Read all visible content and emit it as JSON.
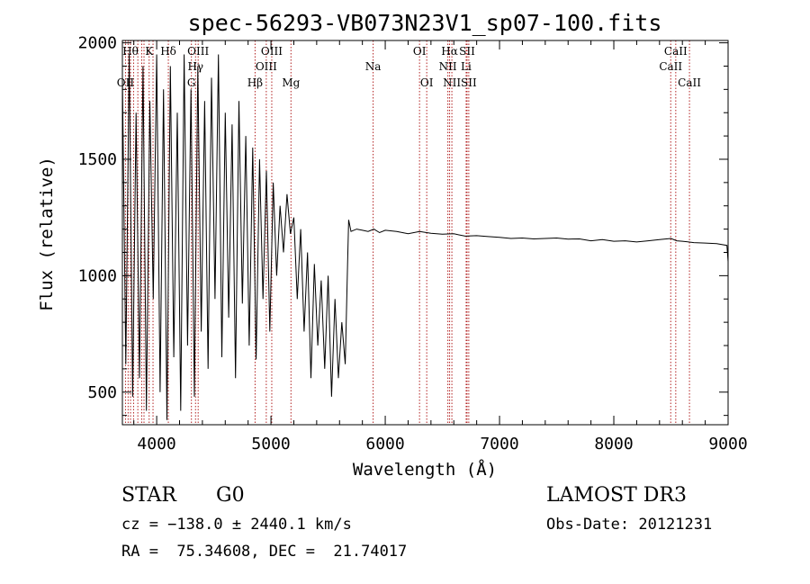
{
  "chart_data": {
    "type": "line",
    "title": "spec-56293-VB073N23V1_sp07-100.fits",
    "xlabel": "Wavelength (Å)",
    "ylabel": "Flux (relative)",
    "xlim": [
      3700,
      9000
    ],
    "ylim": [
      360,
      2010
    ],
    "xticks": [
      4000,
      5000,
      6000,
      7000,
      8000,
      9000
    ],
    "yticks": [
      500,
      1000,
      1500,
      2000
    ],
    "grid": false,
    "series": [
      {
        "name": "flux",
        "x": [
          3700,
          3730,
          3760,
          3790,
          3820,
          3850,
          3880,
          3910,
          3940,
          3970,
          4000,
          4030,
          4060,
          4090,
          4120,
          4150,
          4180,
          4210,
          4240,
          4270,
          4300,
          4330,
          4360,
          4390,
          4420,
          4450,
          4480,
          4510,
          4540,
          4570,
          4600,
          4630,
          4660,
          4690,
          4720,
          4750,
          4780,
          4810,
          4840,
          4870,
          4900,
          4930,
          4960,
          4990,
          5020,
          5050,
          5080,
          5110,
          5140,
          5170,
          5200,
          5230,
          5260,
          5290,
          5320,
          5350,
          5380,
          5410,
          5440,
          5470,
          5500,
          5530,
          5560,
          5590,
          5620,
          5650,
          5670,
          5680,
          5700,
          5750,
          5800,
          5850,
          5900,
          5950,
          6000,
          6100,
          6200,
          6300,
          6400,
          6500,
          6600,
          6700,
          6800,
          6900,
          7000,
          7100,
          7200,
          7300,
          7400,
          7500,
          7600,
          7700,
          7800,
          7900,
          8000,
          8100,
          8200,
          8300,
          8400,
          8500,
          8550,
          8600,
          8700,
          8800,
          8900,
          8990,
          9000
        ],
        "y": [
          1850,
          620,
          1950,
          480,
          1700,
          560,
          1900,
          420,
          1750,
          900,
          1950,
          500,
          1800,
          380,
          1900,
          650,
          1700,
          420,
          1950,
          700,
          1800,
          480,
          1900,
          760,
          1750,
          600,
          1850,
          900,
          1950,
          650,
          1700,
          820,
          1650,
          560,
          1750,
          880,
          1600,
          700,
          1550,
          640,
          1500,
          900,
          1450,
          760,
          1400,
          1000,
          1300,
          1100,
          1350,
          1180,
          1250,
          900,
          1200,
          760,
          1100,
          560,
          1050,
          700,
          980,
          600,
          1000,
          480,
          900,
          560,
          800,
          620,
          1050,
          1240,
          1190,
          1200,
          1195,
          1190,
          1200,
          1185,
          1195,
          1190,
          1180,
          1190,
          1182,
          1178,
          1180,
          1170,
          1172,
          1168,
          1165,
          1160,
          1162,
          1158,
          1160,
          1162,
          1157,
          1158,
          1150,
          1155,
          1148,
          1150,
          1145,
          1150,
          1155,
          1160,
          1150,
          1148,
          1142,
          1140,
          1138,
          1130,
          1060
        ]
      }
    ],
    "lines": [
      {
        "x": 3727,
        "label": "OII",
        "row": 3
      },
      {
        "x": 3750,
        "label": "",
        "row": 0
      },
      {
        "x": 3771,
        "label": "Hθ",
        "row": 1
      },
      {
        "x": 3798,
        "label": "",
        "row": 0
      },
      {
        "x": 3835,
        "label": "",
        "row": 0
      },
      {
        "x": 3869,
        "label": "",
        "row": 0
      },
      {
        "x": 3889,
        "label": "",
        "row": 0
      },
      {
        "x": 3934,
        "label": "K",
        "row": 1
      },
      {
        "x": 3968,
        "label": "",
        "row": 0
      },
      {
        "x": 4102,
        "label": "Hδ",
        "row": 1
      },
      {
        "x": 4304,
        "label": "G",
        "row": 3
      },
      {
        "x": 4340,
        "label": "Hγ",
        "row": 2
      },
      {
        "x": 4363,
        "label": "OIII",
        "row": 1
      },
      {
        "x": 4861,
        "label": "Hβ",
        "row": 3
      },
      {
        "x": 4959,
        "label": "OIII",
        "row": 2
      },
      {
        "x": 5007,
        "label": "OIII",
        "row": 1
      },
      {
        "x": 5175,
        "label": "Mg",
        "row": 3
      },
      {
        "x": 5894,
        "label": "Na",
        "row": 2
      },
      {
        "x": 6300,
        "label": "OI",
        "row": 1
      },
      {
        "x": 6363,
        "label": "OI",
        "row": 3
      },
      {
        "x": 6548,
        "label": "NII",
        "row": 2
      },
      {
        "x": 6563,
        "label": "Hα",
        "row": 1
      },
      {
        "x": 6583,
        "label": "NII",
        "row": 3
      },
      {
        "x": 6708,
        "label": "Li",
        "row": 2
      },
      {
        "x": 6716,
        "label": "SII",
        "row": 1
      },
      {
        "x": 6731,
        "label": "SII",
        "row": 3
      },
      {
        "x": 8498,
        "label": "CaII",
        "row": 2
      },
      {
        "x": 8542,
        "label": "CaII",
        "row": 1
      },
      {
        "x": 8662,
        "label": "CaII",
        "row": 3
      }
    ],
    "line_colors": {
      "spectrum": "#000000",
      "marker": "#b22222"
    }
  },
  "info": {
    "class_label": "STAR",
    "subclass": "G0",
    "survey": "LAMOST DR3",
    "cz_line": "cz = −138.0 ± 2440.1 km/s",
    "obs_date": "Obs-Date: 20121231",
    "coords": "RA =  75.34608, DEC =  21.74017"
  }
}
